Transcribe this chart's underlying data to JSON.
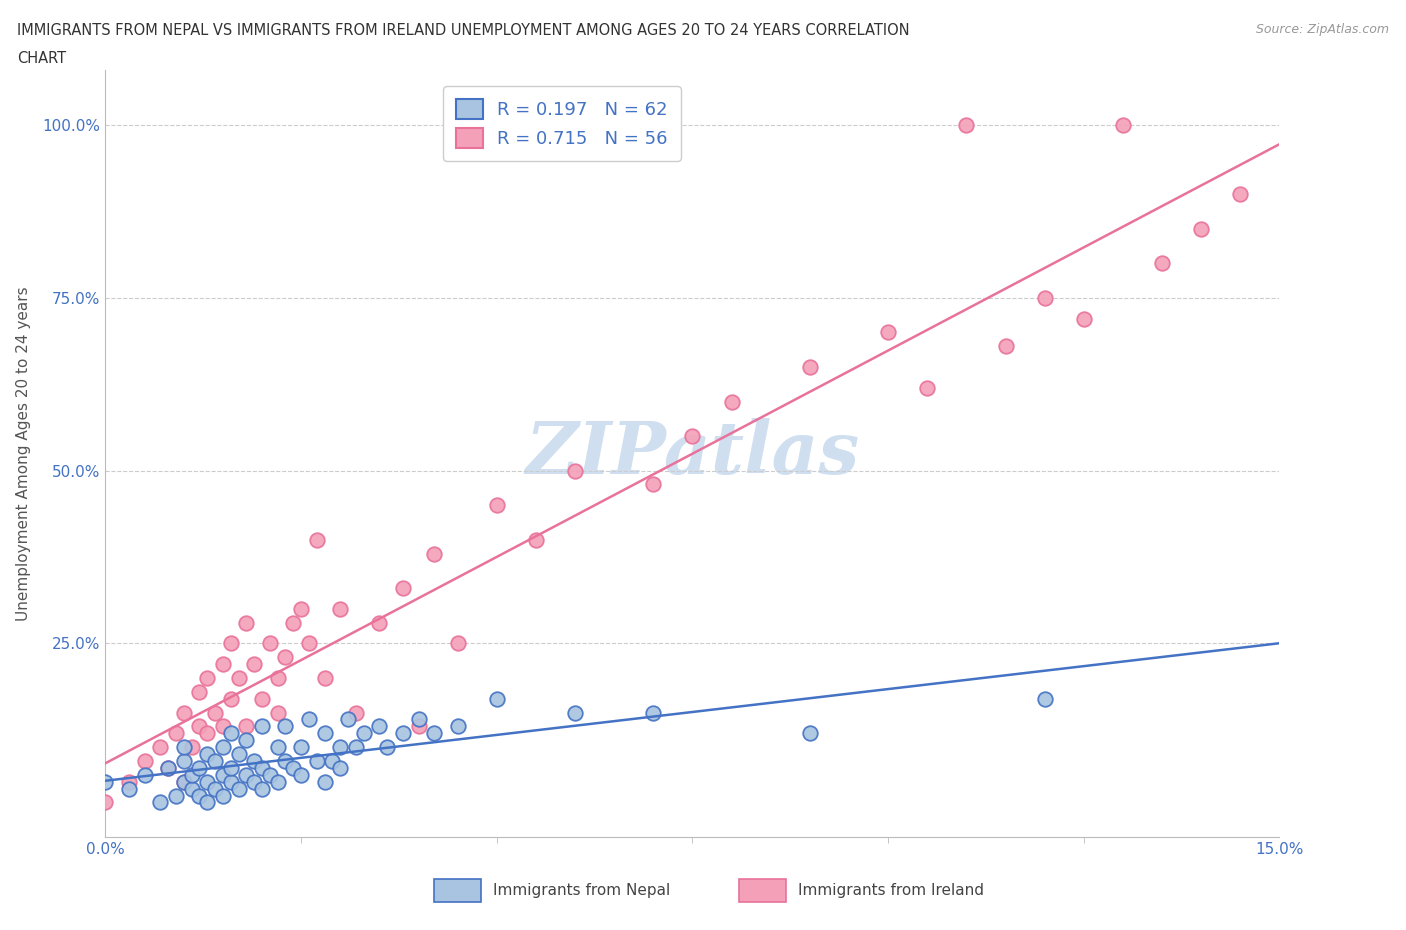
{
  "title_line1": "IMMIGRANTS FROM NEPAL VS IMMIGRANTS FROM IRELAND UNEMPLOYMENT AMONG AGES 20 TO 24 YEARS CORRELATION",
  "title_line2": "CHART",
  "source_text": "Source: ZipAtlas.com",
  "ylabel": "Unemployment Among Ages 20 to 24 years",
  "xlim": [
    0.0,
    0.15
  ],
  "ylim": [
    -0.03,
    1.08
  ],
  "yticks": [
    0.0,
    0.25,
    0.5,
    0.75,
    1.0
  ],
  "ytick_labels": [
    "",
    "25.0%",
    "50.0%",
    "75.0%",
    "100.0%"
  ],
  "xtick_labels": [
    "0.0%",
    "15.0%"
  ],
  "watermark_text": "ZIPatlas",
  "legend_label1": "R = 0.197   N = 62",
  "legend_label2": "R = 0.715   N = 56",
  "legend_label_nepal": "Immigrants from Nepal",
  "legend_label_ireland": "Immigrants from Ireland",
  "color_nepal_fill": "#a8c4e0",
  "color_nepal_edge": "#4472c4",
  "color_ireland_fill": "#f4a0b8",
  "color_ireland_edge": "#e8729a",
  "color_axis_blue": "#4472c4",
  "color_grid": "#cccccc",
  "color_title": "#333333",
  "color_source": "#999999",
  "color_watermark": "#d0dff0",
  "nepal_x": [
    0.0,
    0.003,
    0.005,
    0.007,
    0.008,
    0.009,
    0.01,
    0.01,
    0.01,
    0.011,
    0.011,
    0.012,
    0.012,
    0.013,
    0.013,
    0.013,
    0.014,
    0.014,
    0.015,
    0.015,
    0.015,
    0.016,
    0.016,
    0.016,
    0.017,
    0.017,
    0.018,
    0.018,
    0.019,
    0.019,
    0.02,
    0.02,
    0.02,
    0.021,
    0.022,
    0.022,
    0.023,
    0.023,
    0.024,
    0.025,
    0.025,
    0.026,
    0.027,
    0.028,
    0.028,
    0.029,
    0.03,
    0.03,
    0.031,
    0.032,
    0.033,
    0.035,
    0.036,
    0.038,
    0.04,
    0.042,
    0.045,
    0.05,
    0.06,
    0.07,
    0.09,
    0.12
  ],
  "nepal_y": [
    0.05,
    0.04,
    0.06,
    0.02,
    0.07,
    0.03,
    0.05,
    0.08,
    0.1,
    0.04,
    0.06,
    0.03,
    0.07,
    0.05,
    0.09,
    0.02,
    0.04,
    0.08,
    0.06,
    0.1,
    0.03,
    0.05,
    0.07,
    0.12,
    0.04,
    0.09,
    0.06,
    0.11,
    0.05,
    0.08,
    0.04,
    0.07,
    0.13,
    0.06,
    0.05,
    0.1,
    0.08,
    0.13,
    0.07,
    0.1,
    0.06,
    0.14,
    0.08,
    0.12,
    0.05,
    0.08,
    0.1,
    0.07,
    0.14,
    0.1,
    0.12,
    0.13,
    0.1,
    0.12,
    0.14,
    0.12,
    0.13,
    0.17,
    0.15,
    0.15,
    0.12,
    0.17
  ],
  "ireland_x": [
    0.0,
    0.003,
    0.005,
    0.007,
    0.008,
    0.009,
    0.01,
    0.01,
    0.011,
    0.012,
    0.012,
    0.013,
    0.013,
    0.014,
    0.015,
    0.015,
    0.016,
    0.016,
    0.017,
    0.018,
    0.018,
    0.019,
    0.02,
    0.021,
    0.022,
    0.022,
    0.023,
    0.024,
    0.025,
    0.026,
    0.027,
    0.028,
    0.03,
    0.032,
    0.035,
    0.038,
    0.04,
    0.042,
    0.045,
    0.05,
    0.055,
    0.06,
    0.07,
    0.075,
    0.08,
    0.09,
    0.1,
    0.105,
    0.11,
    0.115,
    0.12,
    0.125,
    0.13,
    0.135,
    0.14,
    0.145
  ],
  "ireland_y": [
    0.02,
    0.05,
    0.08,
    0.1,
    0.07,
    0.12,
    0.05,
    0.15,
    0.1,
    0.13,
    0.18,
    0.12,
    0.2,
    0.15,
    0.13,
    0.22,
    0.17,
    0.25,
    0.2,
    0.13,
    0.28,
    0.22,
    0.17,
    0.25,
    0.15,
    0.2,
    0.23,
    0.28,
    0.3,
    0.25,
    0.4,
    0.2,
    0.3,
    0.15,
    0.28,
    0.33,
    0.13,
    0.38,
    0.25,
    0.45,
    0.4,
    0.5,
    0.48,
    0.55,
    0.6,
    0.65,
    0.7,
    0.62,
    1.0,
    0.68,
    0.75,
    0.72,
    1.0,
    0.8,
    0.85,
    0.9
  ]
}
